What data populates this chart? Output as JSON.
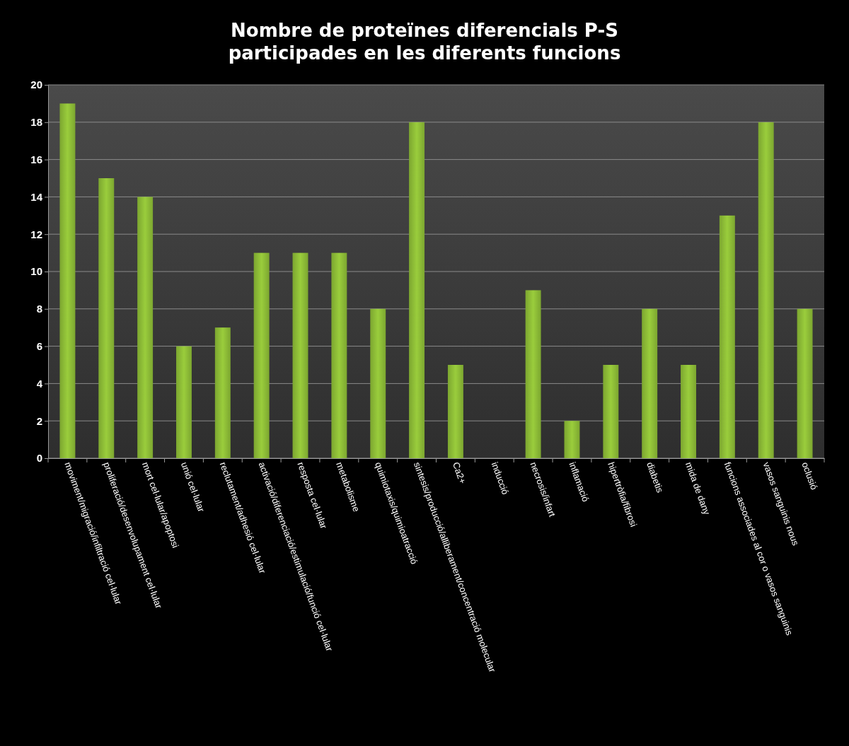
{
  "chart_data": {
    "type": "bar",
    "title": "Nombre de proteïnes diferencials P-S participades en les diferents funcions",
    "categories": [
      "moviment/migració/infiltració cel·lular",
      "proliferació/desenvolupament cel·lular",
      "mort cel·lular/apoptosi",
      "unió cel·lular",
      "reclutament/adhesió cel·lular",
      "activació/diferenciació/estimulació/funció cel·lular",
      "resposta cel·lular",
      "metabolisme",
      "quimiotaxis/quimioatracció",
      "sintesis/producció/alliberament/concentració molecular",
      "Ca2+",
      "inducció",
      "necrosis/infart",
      "inflamació",
      "hipertròfia/fibrosi",
      "diabetis",
      "mida de dany",
      "funcions associades al cor o vasos sanguinis",
      "vasos sanguinis nous",
      "oclusió"
    ],
    "values": [
      19,
      15,
      14,
      6,
      7,
      11,
      11,
      11,
      8,
      18,
      5,
      0,
      9,
      2,
      5,
      8,
      5,
      13,
      18,
      8
    ],
    "color": "#9acd3c",
    "ylim": [
      0,
      20
    ],
    "yticks": [
      0,
      2,
      4,
      6,
      8,
      10,
      12,
      14,
      16,
      18,
      20
    ],
    "grid": "y"
  }
}
